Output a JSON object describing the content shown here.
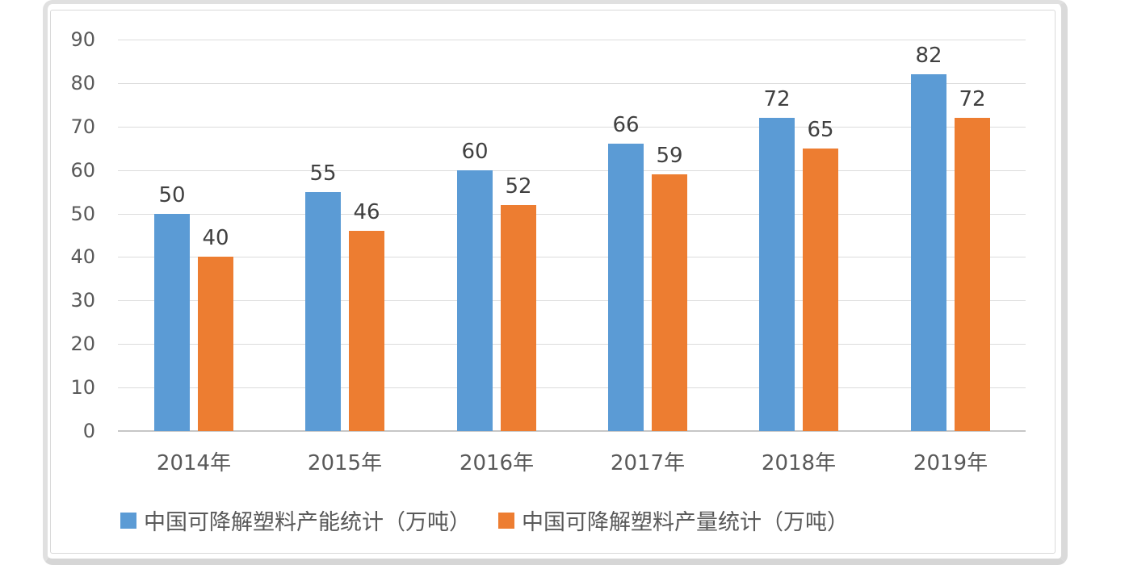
{
  "chart_data": {
    "type": "bar",
    "title": "",
    "xlabel": "",
    "ylabel": "",
    "categories": [
      "2014年",
      "2015年",
      "2016年",
      "2017年",
      "2018年",
      "2019年"
    ],
    "series": [
      {
        "id": "capacity",
        "name": "中国可降解塑料产能统计（万吨）",
        "color": "#5B9BD5",
        "values": [
          50,
          55,
          60,
          66,
          72,
          82
        ]
      },
      {
        "id": "output",
        "name": "中国可降解塑料产量统计（万吨）",
        "color": "#ED7D31",
        "values": [
          40,
          46,
          52,
          59,
          65,
          72
        ]
      }
    ],
    "ylim": [
      0,
      90
    ],
    "yticks": [
      0,
      10,
      20,
      30,
      40,
      50,
      60,
      70,
      80,
      90
    ],
    "grid": true,
    "data_labels": true,
    "legend_position": "bottom"
  },
  "colors": {
    "grid": "#dcdcdc",
    "axis_line": "#c6c6c6",
    "tick_text": "#595959",
    "value_text": "#404040",
    "frame_border": "#d9d9d9",
    "card_border": "#dadada",
    "background": "#ffffff"
  }
}
